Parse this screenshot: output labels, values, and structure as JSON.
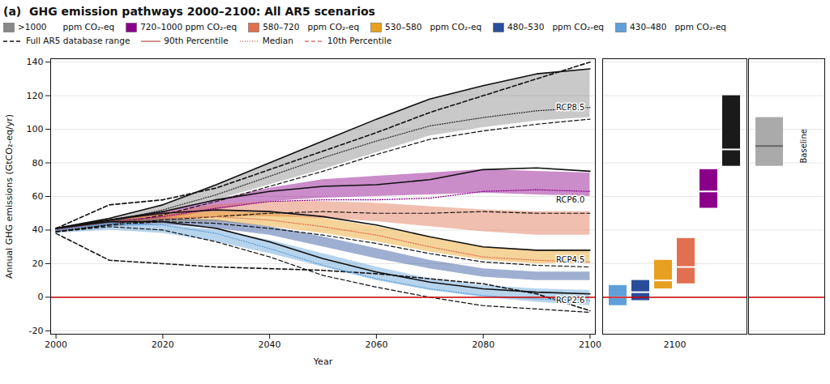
{
  "chart_data": [
    {
      "type": "line",
      "panel_label": "(a)",
      "title": "GHG emission pathways 2000–2100: All AR5 scenarios",
      "xlabel": "Year",
      "ylabel": "Annual GHG emissions (GtCO₂-eq/yr)",
      "x": [
        2000,
        2010,
        2020,
        2030,
        2040,
        2050,
        2060,
        2070,
        2080,
        2090,
        2100
      ],
      "xlim": [
        1999,
        2101
      ],
      "xticks": [
        2000,
        2020,
        2040,
        2060,
        2080,
        2100
      ],
      "ylim": [
        -22,
        142
      ],
      "yticks": [
        -20,
        0,
        20,
        40,
        60,
        80,
        100,
        120,
        140
      ],
      "grid": true,
      "legend": "top",
      "zero_line": {
        "value": 0,
        "color": "#cc0000"
      },
      "series": [
        {
          "name": ">1000      ppm CO₂-eq",
          "type": "area",
          "color": "#888888",
          "upper": [
            41,
            47,
            55,
            67,
            80,
            93,
            106,
            118,
            126,
            133,
            136
          ],
          "lower": [
            39,
            43,
            50,
            58,
            67,
            76,
            86,
            96,
            101,
            105,
            107
          ]
        },
        {
          "name": "720–1000 ppm CO₂-eq",
          "type": "area",
          "color": "#8b0089",
          "upper": [
            41,
            46,
            51,
            58,
            65,
            70,
            72,
            74,
            76,
            75,
            74
          ],
          "lower": [
            39,
            43,
            46,
            52,
            57,
            59,
            60,
            61,
            62,
            61,
            60
          ]
        },
        {
          "name": "580–720   ppm CO₂-eq",
          "type": "area",
          "color": "#e07050",
          "upper": [
            41,
            46,
            50,
            55,
            57,
            57,
            56,
            54,
            52,
            51,
            51
          ],
          "lower": [
            39,
            43,
            46,
            48,
            48,
            47,
            45,
            42,
            39,
            37,
            37
          ]
        },
        {
          "name": "530–580   ppm CO₂-eq",
          "type": "area",
          "color": "#e8a020",
          "upper": [
            41,
            46,
            49,
            51,
            50,
            47,
            42,
            36,
            30,
            28,
            28
          ],
          "lower": [
            39,
            43,
            45,
            45,
            42,
            38,
            33,
            27,
            22,
            20,
            20
          ]
        },
        {
          "name": "480–530   ppm CO₂-eq",
          "type": "area",
          "color": "#2a4d9a",
          "upper": [
            41,
            46,
            47,
            46,
            42,
            36,
            29,
            22,
            17,
            15,
            15
          ],
          "lower": [
            39,
            42,
            43,
            41,
            37,
            30,
            23,
            17,
            12,
            10,
            10
          ]
        },
        {
          "name": "430–480   ppm CO₂-eq",
          "type": "area",
          "color": "#5fa0d8",
          "upper": [
            41,
            44,
            43,
            40,
            34,
            26,
            18,
            11,
            7,
            5,
            4
          ],
          "lower": [
            38,
            40,
            38,
            33,
            26,
            18,
            10,
            4,
            0,
            -3,
            -5
          ]
        },
        {
          "name": "Full AR5 database range",
          "type": "line",
          "line_style": "dashed",
          "color": "#111111",
          "upper": [
            41,
            55,
            58,
            65,
            76,
            87,
            98,
            110,
            120,
            130,
            140
          ],
          "lower": [
            38,
            22,
            20,
            18,
            17,
            16,
            14,
            11,
            8,
            2,
            -8
          ]
        }
      ],
      "rcp_series": [
        {
          "name": "RCP8.5",
          "color": "#111111",
          "median_color": "#333333",
          "p90": [
            41,
            47,
            55,
            67,
            80,
            93,
            106,
            118,
            126,
            133,
            136
          ],
          "median": [
            40,
            45,
            52,
            61,
            72,
            83,
            93,
            102,
            107,
            111,
            113
          ],
          "p10": [
            39,
            43,
            49,
            57,
            66,
            75,
            85,
            94,
            99,
            103,
            106
          ],
          "label_x": 2099,
          "label_y": 113
        },
        {
          "name": "RCP6.0",
          "color": "#111111",
          "median_color": "#8b0089",
          "p90": [
            41,
            46,
            51,
            58,
            63,
            66,
            67,
            70,
            76,
            77,
            75
          ],
          "median": [
            40,
            45,
            48,
            53,
            57,
            58,
            58,
            59,
            63,
            64,
            63
          ],
          "p10": [
            39,
            43,
            46,
            48,
            50,
            51,
            50,
            50,
            51,
            50,
            50
          ],
          "label_x": 2099,
          "label_y": 58
        },
        {
          "name": "RCP4.5",
          "color": "#111111",
          "median_color": "#e07050",
          "p90": [
            41,
            46,
            50,
            52,
            51,
            48,
            43,
            36,
            30,
            28,
            28
          ],
          "median": [
            40,
            45,
            47,
            48,
            46,
            42,
            37,
            30,
            24,
            22,
            21
          ],
          "p10": [
            39,
            43,
            45,
            44,
            41,
            37,
            32,
            26,
            21,
            19,
            18
          ],
          "label_x": 2099,
          "label_y": 22
        },
        {
          "name": "RCP2.6",
          "color": "#111111",
          "median_color": "#5fa0d8",
          "p90": [
            41,
            45,
            45,
            41,
            33,
            23,
            15,
            9,
            5,
            3,
            2
          ],
          "median": [
            40,
            44,
            43,
            38,
            29,
            19,
            11,
            5,
            1,
            -1,
            -2
          ],
          "p10": [
            39,
            42,
            40,
            33,
            24,
            13,
            6,
            0,
            -5,
            -7,
            -9
          ],
          "label_x": 2099,
          "label_y": -2
        }
      ],
      "percentile_legend": [
        {
          "name": "90th Percentile",
          "line_style": "solid",
          "color": "#cc7777"
        },
        {
          "name": "Median",
          "line_style": "dotted",
          "color": "#cc7777"
        },
        {
          "name": "10th Percentile",
          "line_style": "dashed",
          "color": "#cc7777"
        }
      ]
    },
    {
      "type": "range_bar",
      "categories": [
        "2100"
      ],
      "ylim": [
        -22,
        142
      ],
      "yticks": [
        -20,
        0,
        20,
        40,
        60,
        80,
        100,
        120,
        140
      ],
      "grid": true,
      "tick_labels": "x",
      "median_color": "#ffffff",
      "zero_line": {
        "value": 0,
        "color": "#cc0000"
      },
      "bars": [
        {
          "color": "#5fa0d8",
          "low": -5,
          "median": 0,
          "high": 7
        },
        {
          "color": "#2a4d9a",
          "low": -2,
          "median": 3,
          "high": 10
        },
        {
          "color": "#e8a020",
          "low": 5,
          "median": 10,
          "high": 22
        },
        {
          "color": "#e07050",
          "low": 8,
          "median": 18,
          "high": 35
        },
        {
          "color": "#8b0089",
          "low": 53,
          "median": 63,
          "high": 76
        },
        {
          "color": "#1a1a1a",
          "low": 78,
          "median": 88,
          "high": 120
        }
      ]
    },
    {
      "type": "range_bar",
      "text": "Baseline",
      "ylim": [
        -22,
        142
      ],
      "yticks": [
        -20,
        0,
        20,
        40,
        60,
        80,
        100,
        120,
        140
      ],
      "grid": true,
      "tick_labels": false,
      "median_color": "#666666",
      "zero_line": {
        "value": 0,
        "color": "#cc0000"
      },
      "bars": [
        {
          "color": "#aaaaaa",
          "low": 78,
          "median": 90,
          "high": 107
        }
      ]
    }
  ]
}
